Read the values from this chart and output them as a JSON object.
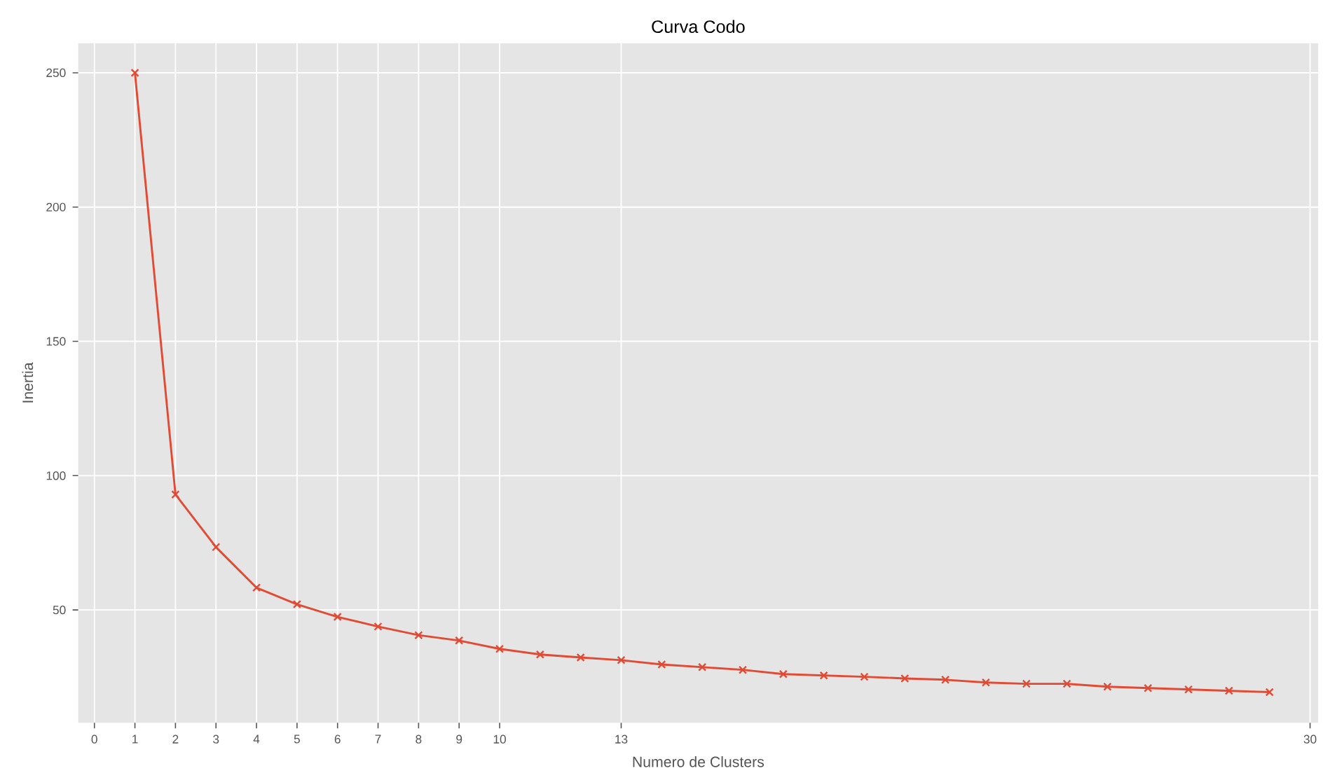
{
  "chart_data": {
    "type": "line",
    "title": "Curva Codo",
    "xlabel": "Numero de Clusters",
    "ylabel": "Inertia",
    "x": [
      1,
      2,
      3,
      4,
      5,
      6,
      7,
      8,
      9,
      10,
      11,
      12,
      13,
      14,
      15,
      16,
      17,
      18,
      19,
      20,
      21,
      22,
      23,
      24,
      25,
      26,
      27,
      28,
      29
    ],
    "series": [
      {
        "color": "#e24a33",
        "values": [
          250,
          93,
          73.4,
          58.3,
          52.1,
          47.4,
          43.8,
          40.6,
          38.6,
          35.5,
          33.4,
          32.3,
          31.3,
          29.7,
          28.7,
          27.7,
          26.1,
          25.6,
          25.1,
          24.5,
          24.0,
          23.0,
          22.5,
          22.5,
          21.4,
          20.9,
          20.4,
          19.9,
          19.4
        ]
      }
    ],
    "xlim": [
      -0.4,
      30.2
    ],
    "ylim": [
      8,
      261
    ],
    "xticks": [
      0,
      1,
      2,
      3,
      4,
      5,
      6,
      7,
      8,
      9,
      10,
      13,
      30
    ],
    "yticks": [
      50,
      100,
      150,
      200,
      250
    ],
    "grid": true,
    "marker": "cross",
    "line_style": "solid"
  }
}
